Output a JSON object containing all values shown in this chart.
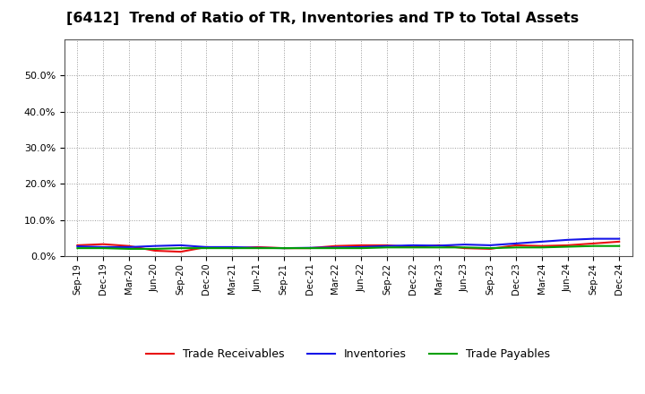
{
  "title": "[6412]  Trend of Ratio of TR, Inventories and TP to Total Assets",
  "title_fontsize": 11.5,
  "ylim": [
    0.0,
    0.6
  ],
  "yticks": [
    0.0,
    0.1,
    0.2,
    0.3,
    0.4,
    0.5
  ],
  "xtick_labels": [
    "Sep-19",
    "Dec-19",
    "Mar-20",
    "Jun-20",
    "Sep-20",
    "Dec-20",
    "Mar-21",
    "Jun-21",
    "Sep-21",
    "Dec-21",
    "Mar-22",
    "Jun-22",
    "Sep-22",
    "Dec-22",
    "Mar-23",
    "Jun-23",
    "Sep-23",
    "Dec-23",
    "Mar-24",
    "Jun-24",
    "Sep-24",
    "Dec-24"
  ],
  "trade_receivables": [
    0.03,
    0.033,
    0.028,
    0.015,
    0.012,
    0.025,
    0.022,
    0.025,
    0.022,
    0.022,
    0.028,
    0.03,
    0.03,
    0.025,
    0.03,
    0.022,
    0.02,
    0.03,
    0.028,
    0.03,
    0.035,
    0.04
  ],
  "inventories": [
    0.027,
    0.025,
    0.025,
    0.028,
    0.03,
    0.025,
    0.025,
    0.023,
    0.022,
    0.023,
    0.024,
    0.025,
    0.028,
    0.03,
    0.029,
    0.032,
    0.03,
    0.035,
    0.04,
    0.045,
    0.048,
    0.048
  ],
  "trade_payables": [
    0.022,
    0.022,
    0.02,
    0.02,
    0.022,
    0.022,
    0.022,
    0.022,
    0.022,
    0.022,
    0.022,
    0.022,
    0.024,
    0.024,
    0.024,
    0.024,
    0.022,
    0.024,
    0.024,
    0.026,
    0.028,
    0.028
  ],
  "tr_color": "#e81010",
  "inv_color": "#1515e8",
  "tp_color": "#00a000",
  "line_width": 1.5,
  "legend_labels": [
    "Trade Receivables",
    "Inventories",
    "Trade Payables"
  ],
  "bg_color": "#ffffff",
  "plot_bg_color": "#ffffff",
  "grid_color": "#999999",
  "spine_color": "#555555"
}
